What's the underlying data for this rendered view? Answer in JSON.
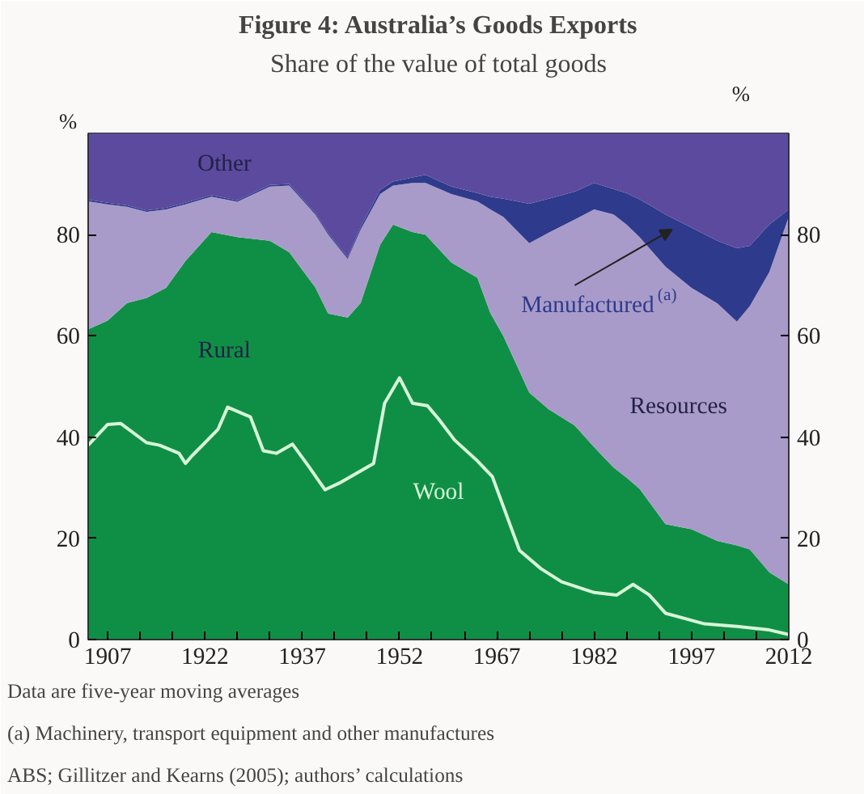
{
  "chart_data": {
    "type": "area",
    "stacked": true,
    "title": "Figure 4: Australia’s Goods Exports",
    "subtitle": "Share of the value of total goods",
    "ylabel": "%",
    "y2label": "%",
    "x": [
      1904,
      1907,
      1910,
      1913,
      1916,
      1919,
      1923,
      1927,
      1932,
      1935,
      1939,
      1941,
      1944,
      1946,
      1949,
      1951,
      1954,
      1956,
      1960,
      1964,
      1966,
      1968,
      1972,
      1975,
      1979,
      1982,
      1985,
      1987,
      1989,
      1993,
      1997,
      2001,
      2004,
      2006,
      2009,
      2012
    ],
    "xlim": [
      1904,
      2012
    ],
    "xticks": [
      1907,
      {
        "value": 1912,
        "label": null
      },
      {
        "value": 1917,
        "label": null
      },
      1922,
      {
        "value": 1927,
        "label": null
      },
      {
        "value": 1932,
        "label": null
      },
      1937,
      {
        "value": 1942,
        "label": null
      },
      {
        "value": 1947,
        "label": null
      },
      1952,
      {
        "value": 1957,
        "label": null
      },
      {
        "value": 1962,
        "label": null
      },
      1967,
      {
        "value": 1972,
        "label": null
      },
      {
        "value": 1977,
        "label": null
      },
      1982,
      {
        "value": 1987,
        "label": null
      },
      {
        "value": 1992,
        "label": null
      },
      1997,
      {
        "value": 2002,
        "label": null
      },
      {
        "value": 2007,
        "label": null
      },
      2012
    ],
    "ylim": [
      0,
      100
    ],
    "yticks": [
      0,
      20,
      40,
      60,
      80
    ],
    "y2lim": [
      0,
      100
    ],
    "y2ticks": [
      0,
      20,
      40,
      60,
      80
    ],
    "series": [
      {
        "name": "Rural",
        "color": "#0f8f45",
        "values": [
          61.3,
          63,
          66.5,
          67.5,
          69.5,
          74.8,
          80.5,
          79.5,
          78.8,
          76.5,
          69.6,
          64.4,
          63.6,
          66.5,
          78,
          82,
          80.5,
          80,
          74.5,
          71.5,
          64.5,
          60,
          48.8,
          45.5,
          42.3,
          38,
          34,
          32,
          29.8,
          22.8,
          21.8,
          19.5,
          18.6,
          17.8,
          13.3,
          10.9
        ]
      },
      {
        "name": "Resources",
        "color": "#a99bc9",
        "values": [
          25.3,
          23,
          19,
          17,
          15.5,
          11.2,
          7,
          7,
          10.7,
          13.2,
          14.4,
          15.6,
          11.6,
          14.5,
          10,
          7.7,
          9.7,
          10.2,
          13.5,
          15.1,
          20.5,
          23.5,
          29.5,
          34.9,
          40.7,
          47,
          50,
          50,
          49.7,
          50.9,
          47.7,
          46.9,
          44.2,
          48.1,
          59.3,
          72.6
        ]
      },
      {
        "name": "Manufactured$^{(a)}$",
        "color": "#2e3a8c",
        "values": [
          0.3,
          0.3,
          0.3,
          0.3,
          0.3,
          0.3,
          0.3,
          0.3,
          0.3,
          0.3,
          0.3,
          0.3,
          0.3,
          0.5,
          0.8,
          0.8,
          1.1,
          1.6,
          1.5,
          1.6,
          2.5,
          3.6,
          7.8,
          6.7,
          5.5,
          5.2,
          5,
          6.2,
          7.5,
          10.3,
          11.9,
          12.4,
          14.5,
          11.9,
          9.4,
          1.5
        ]
      },
      {
        "name": "Other",
        "color": "#5b4a9e",
        "values": [
          13.1,
          13.7,
          14.2,
          15.2,
          14.7,
          13.7,
          12.2,
          13.2,
          10.2,
          10,
          15.7,
          19.7,
          24.5,
          18.5,
          11.2,
          9.5,
          8.7,
          8.2,
          10.5,
          11.8,
          12.5,
          12.9,
          13.9,
          12.9,
          11.5,
          9.8,
          11,
          11.8,
          13,
          16,
          18.6,
          21.2,
          22.7,
          22.2,
          18,
          15
        ]
      },
      {
        "name": "Wool",
        "type": "line",
        "color": "#d8f5d8",
        "x": [
          1904,
          1907,
          1909,
          1913,
          1915,
          1918,
          1919,
          1920,
          1924,
          1925.5,
          1929,
          1931,
          1933,
          1935.5,
          1938,
          1940.5,
          1943,
          1948,
          1949.7,
          1952,
          1954,
          1956.3,
          1958,
          1960.5,
          1964,
          1966.3,
          1970.5,
          1973.8,
          1977,
          1982,
          1985.5,
          1988,
          1990.5,
          1993,
          1999,
          2004,
          2009,
          2012
        ],
        "values": [
          38.4,
          42.5,
          42.7,
          38.9,
          38.4,
          36.8,
          34.8,
          36.3,
          41.5,
          45.9,
          44,
          37.3,
          36.8,
          38.6,
          34.2,
          29.6,
          31.1,
          34.8,
          46.7,
          51.7,
          46.7,
          46.2,
          43.6,
          39.4,
          35.3,
          32.2,
          17.6,
          14,
          11.4,
          9.3,
          8.8,
          10.9,
          8.8,
          5.2,
          3.1,
          2.6,
          1.9,
          1
        ]
      }
    ],
    "annotations": [
      "Data are five-year moving averages",
      "(a) Machinery, transport equipment and other manufactures",
      "ABS; Gillitzer and Kearns (2005); authors’ calculations"
    ]
  }
}
